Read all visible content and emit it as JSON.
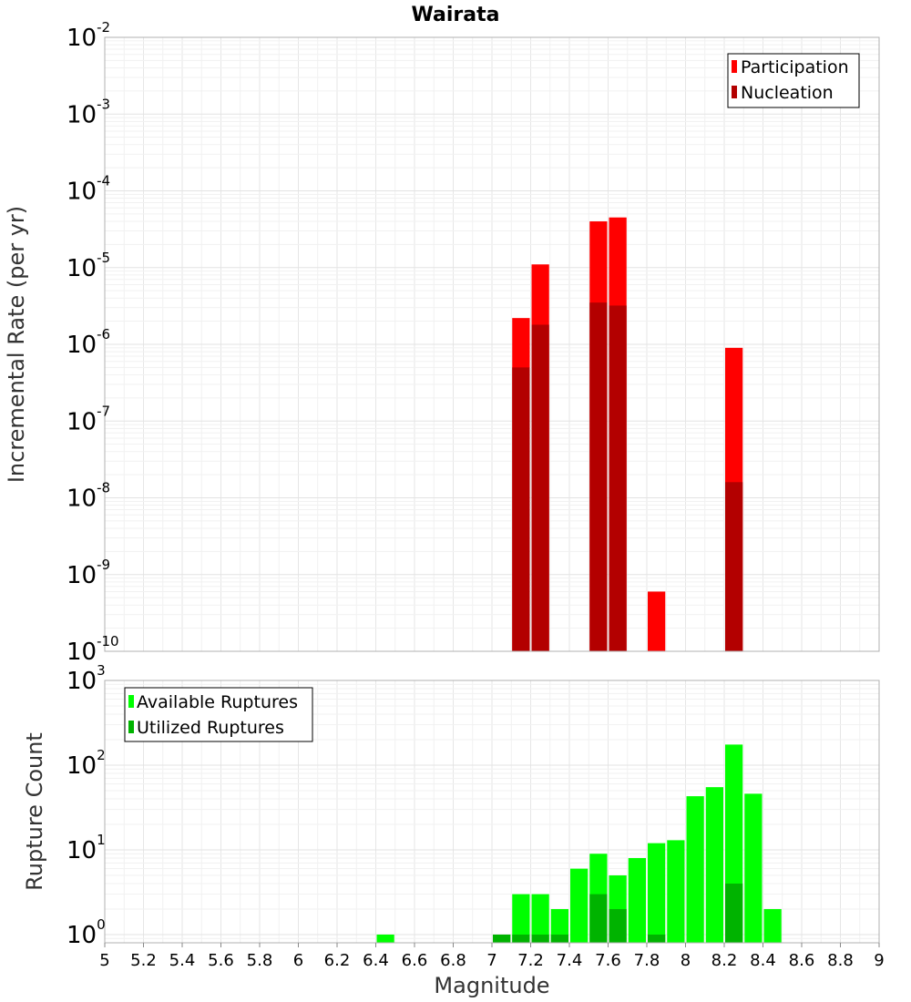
{
  "title": "Wairata",
  "colors": {
    "participation": "#ff0000",
    "nucleation": "#b30000",
    "available": "#00ff00",
    "utilized": "#00b300"
  },
  "chart_data": [
    {
      "type": "bar",
      "ylabel": "Incremental Rate (per yr)",
      "y_scale": "log",
      "ylim": [
        1e-10,
        0.01
      ],
      "y_ticks": [
        {
          "base": "10",
          "exp": "-10",
          "value": 1e-10
        },
        {
          "base": "10",
          "exp": "-9",
          "value": 1e-09
        },
        {
          "base": "10",
          "exp": "-8",
          "value": 1e-08
        },
        {
          "base": "10",
          "exp": "-7",
          "value": 1e-07
        },
        {
          "base": "10",
          "exp": "-6",
          "value": 1e-06
        },
        {
          "base": "10",
          "exp": "-5",
          "value": 1e-05
        },
        {
          "base": "10",
          "exp": "-4",
          "value": 0.0001
        },
        {
          "base": "10",
          "exp": "-3",
          "value": 0.001
        },
        {
          "base": "10",
          "exp": "-2",
          "value": 0.01
        }
      ],
      "legend_position": "top-right",
      "bin_width": 0.1,
      "series": [
        {
          "name": "Participation",
          "color_key": "participation",
          "x": [
            7.15,
            7.25,
            7.55,
            7.65,
            7.85,
            8.25
          ],
          "values": [
            2.2e-06,
            1.1e-05,
            4e-05,
            4.5e-05,
            6e-10,
            9e-07
          ]
        },
        {
          "name": "Nucleation",
          "color_key": "nucleation",
          "x": [
            7.15,
            7.25,
            7.55,
            7.65,
            8.25
          ],
          "values": [
            5e-07,
            1.8e-06,
            3.5e-06,
            3.2e-06,
            1.6e-08
          ]
        }
      ]
    },
    {
      "type": "bar",
      "ylabel": "Rupture Count",
      "xlabel": "Magnitude",
      "y_scale": "log",
      "ylim": [
        0.8,
        1000
      ],
      "y_ticks": [
        {
          "base": "10",
          "exp": "0",
          "value": 1
        },
        {
          "base": "10",
          "exp": "1",
          "value": 10
        },
        {
          "base": "10",
          "exp": "2",
          "value": 100
        },
        {
          "base": "10",
          "exp": "3",
          "value": 1000
        }
      ],
      "xlim": [
        5,
        9
      ],
      "x_ticks": [
        "5",
        "5.2",
        "5.4",
        "5.6",
        "5.8",
        "6",
        "6.2",
        "6.4",
        "6.6",
        "6.8",
        "7",
        "7.2",
        "7.4",
        "7.6",
        "7.8",
        "8",
        "8.2",
        "8.4",
        "8.6",
        "8.8",
        "9"
      ],
      "legend_position": "top-left",
      "bin_width": 0.1,
      "series": [
        {
          "name": "Available Ruptures",
          "color_key": "available",
          "x": [
            6.45,
            7.05,
            7.15,
            7.25,
            7.35,
            7.45,
            7.55,
            7.65,
            7.75,
            7.85,
            7.95,
            8.05,
            8.15,
            8.25,
            8.35,
            8.45
          ],
          "values": [
            1,
            1,
            3,
            3,
            2,
            6,
            9,
            5,
            8,
            12,
            13,
            43,
            55,
            175,
            46,
            2
          ]
        },
        {
          "name": "Utilized Ruptures",
          "color_key": "utilized",
          "x": [
            7.05,
            7.15,
            7.25,
            7.35,
            7.55,
            7.65,
            7.85,
            8.25
          ],
          "values": [
            1,
            1,
            1,
            1,
            3,
            2,
            1,
            4
          ]
        }
      ]
    }
  ]
}
